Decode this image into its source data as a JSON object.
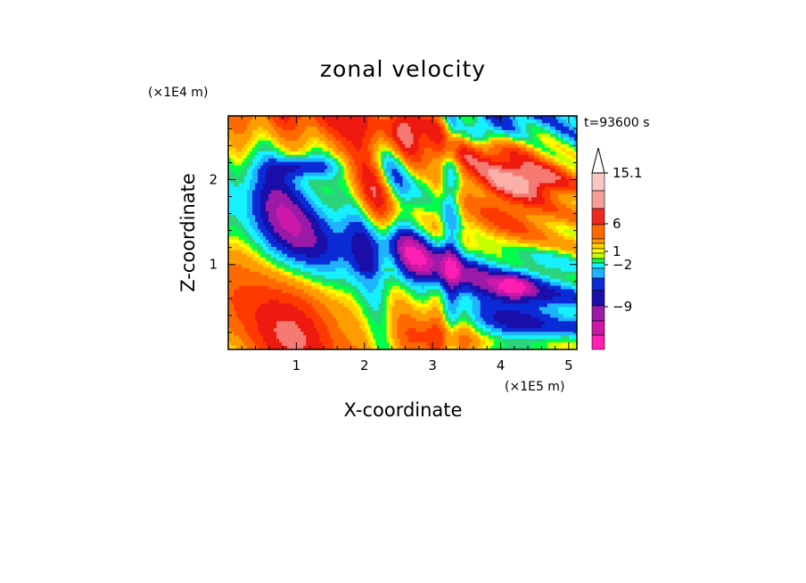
{
  "chart_data": {
    "type": "heatmap",
    "title": "zonal velocity",
    "xlabel": "X-coordinate",
    "ylabel": "Z-coordinate",
    "x_multiplier": "(×1E5 m)",
    "y_multiplier": "(×1E4 m)",
    "time_label": "t=93600 s",
    "xlim": [
      0,
      5.12
    ],
    "ylim": [
      0,
      2.75
    ],
    "x_ticks": [
      1,
      2,
      3,
      4,
      5
    ],
    "y_ticks": [
      1,
      2
    ],
    "colorbar": {
      "labeled_levels": [
        "15.1",
        "6",
        "1",
        "−2",
        "−9"
      ],
      "extend_max": true,
      "colors": [
        "#ff1fb4",
        "#cc18a8",
        "#9b1ba8",
        "#1a0fa8",
        "#0b2bd6",
        "#1fb3ff",
        "#16f0ff",
        "#2bd47a",
        "#00ff4a",
        "#c8ff00",
        "#ffff00",
        "#ffd200",
        "#ff9c00",
        "#ff6a00",
        "#ff3a00",
        "#ee1a10",
        "#f47a72",
        "#f8b0a8",
        "#ffd8d0"
      ]
    },
    "field_description_values": "Alternating bands of positive (orange/red) and negative (blue) zonal velocity tilted from upper-right to lower-left; values range roughly from below -9 to above 15.1."
  }
}
